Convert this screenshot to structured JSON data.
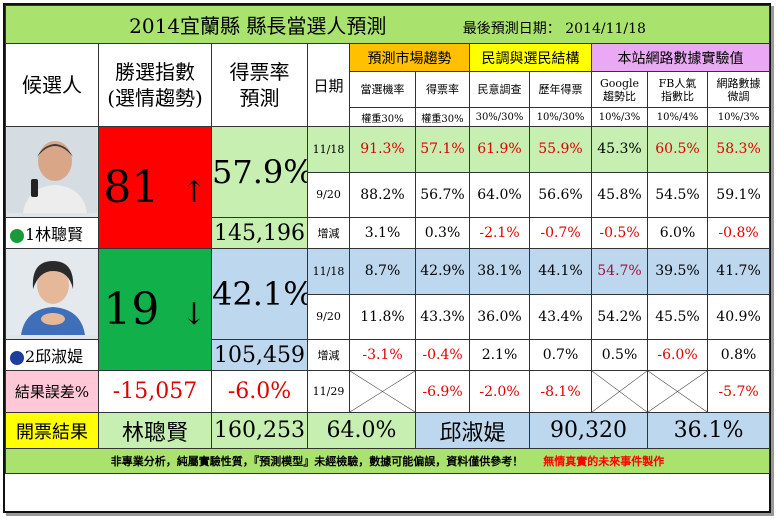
{
  "header": {
    "title": "2014宜蘭縣 縣長當選人預測",
    "last_date_label": "最後預測日期： 2014/11/18"
  },
  "columns": {
    "candidate": "候選人",
    "win_index": "勝選指數\n(選情趨勢)",
    "vote_rate": "得票率\n預測",
    "date": "日期",
    "groups": [
      {
        "label": "預測市場趨勢",
        "color": "#ffc000"
      },
      {
        "label": "民調與選民結構",
        "color": "#ffff00"
      },
      {
        "label": "本站網路數據實驗值",
        "color": "#eaa8f5"
      }
    ],
    "subs": [
      "當選機率",
      "得票率",
      "民意調查",
      "歷年得票",
      "Google\n趨勢比",
      "FB人氣\n指數比",
      "網路數據\n微調"
    ],
    "weights": [
      "權重30%",
      "權重30%",
      "30%/30%",
      "10%/30%",
      "10%/3%",
      "10%/4%",
      "10%/3%"
    ]
  },
  "candidates": [
    {
      "name": "1林聰賢",
      "party_icon": "dpp-icon",
      "index": "81",
      "trend_icon": "arrow-up-icon",
      "trend": "↑",
      "rate": "57.9%",
      "votes": "145,196",
      "rows": [
        {
          "date": "11/18",
          "vals": [
            "91.3%",
            "57.1%",
            "61.9%",
            "55.9%",
            "45.3%",
            "60.5%",
            "58.3%"
          ]
        },
        {
          "date": "9/20",
          "vals": [
            "88.2%",
            "56.7%",
            "64.0%",
            "56.6%",
            "45.8%",
            "54.5%",
            "59.1%"
          ]
        },
        {
          "date": "增減",
          "vals": [
            "3.1%",
            "0.3%",
            "-2.1%",
            "-0.7%",
            "-0.5%",
            "6.0%",
            "-0.8%"
          ]
        }
      ]
    },
    {
      "name": "2邱淑媞",
      "party_icon": "kmt-icon",
      "index": "19",
      "trend_icon": "arrow-down-icon",
      "trend": "↓",
      "rate": "42.1%",
      "votes": "105,459",
      "rows": [
        {
          "date": "11/18",
          "vals": [
            "8.7%",
            "42.9%",
            "38.1%",
            "44.1%",
            "54.7%",
            "39.5%",
            "41.7%"
          ]
        },
        {
          "date": "9/20",
          "vals": [
            "11.8%",
            "43.3%",
            "36.0%",
            "43.4%",
            "54.2%",
            "45.5%",
            "40.9%"
          ]
        },
        {
          "date": "增減",
          "vals": [
            "-3.1%",
            "-0.4%",
            "2.1%",
            "0.7%",
            "0.5%",
            "-6.0%",
            "0.8%"
          ]
        }
      ]
    }
  ],
  "error_row": {
    "label": "結果誤差%",
    "votes_diff": "-15,057",
    "rate_diff": "-6.0%",
    "date": "11/29",
    "vals": [
      "",
      "-6.9%",
      "-2.0%",
      "-8.1%",
      "",
      "",
      "-5.7%"
    ]
  },
  "result": {
    "label": "開票結果",
    "winner": "林聰賢",
    "winner_votes": "160,253",
    "winner_rate": "64.0%",
    "loser": "邱淑媞",
    "loser_votes": "90,320",
    "loser_rate": "36.1%"
  },
  "footer": {
    "disclaimer": "非專業分析，純屬實驗性質，『預測模型』未經檢驗，數據可能偏誤，資料僅供參考！",
    "credit": "無情真實的未來事件製作"
  }
}
